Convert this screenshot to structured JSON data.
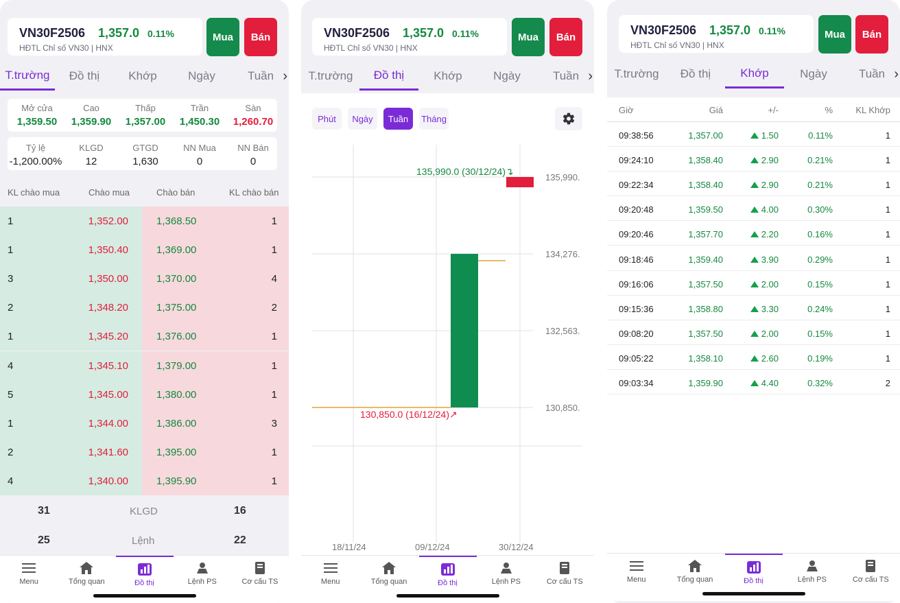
{
  "instrument": {
    "symbol": "VN30F2506",
    "price": "1,357.0",
    "change_pct": "0.11%",
    "subtitle": "HĐTL Chỉ số VN30 | HNX",
    "buy_label": "Mua",
    "sell_label": "Bán"
  },
  "tabs": [
    "T.trường",
    "Đồ thị",
    "Khớp",
    "Ngày",
    "Tuần"
  ],
  "colors": {
    "accent": "#7b2bd6",
    "up": "#14883f",
    "down": "#e31d3c"
  },
  "stats": {
    "row1": [
      {
        "label": "Mở cửa",
        "value": "1,359.50"
      },
      {
        "label": "Cao",
        "value": "1,359.90"
      },
      {
        "label": "Thấp",
        "value": "1,357.00"
      },
      {
        "label": "Trần",
        "value": "1,450.30"
      },
      {
        "label": "Sàn",
        "value": "1,260.70"
      }
    ],
    "row2": [
      {
        "label": "Tỷ lệ",
        "value": "-1,200.00%"
      },
      {
        "label": "KLGD",
        "value": "12"
      },
      {
        "label": "GTGD",
        "value": "1,630"
      },
      {
        "label": "NN Mua",
        "value": "0"
      },
      {
        "label": "NN Bán",
        "value": "0"
      }
    ]
  },
  "orderbook": {
    "headers": [
      "KL chào mua",
      "Chào mua",
      "Chào bán",
      "KL chào bán"
    ],
    "rows": [
      [
        "1",
        "1,352.00",
        "1,368.50",
        "1"
      ],
      [
        "1",
        "1,350.40",
        "1,369.00",
        "1"
      ],
      [
        "3",
        "1,350.00",
        "1,370.00",
        "4"
      ],
      [
        "2",
        "1,348.20",
        "1,375.00",
        "2"
      ],
      [
        "1",
        "1,345.20",
        "1,376.00",
        "1"
      ],
      [
        "4",
        "1,345.10",
        "1,379.00",
        "1"
      ],
      [
        "5",
        "1,345.00",
        "1,380.00",
        "1"
      ],
      [
        "1",
        "1,344.00",
        "1,386.00",
        "3"
      ],
      [
        "2",
        "1,341.60",
        "1,395.00",
        "1"
      ],
      [
        "4",
        "1,340.00",
        "1,395.90",
        "1"
      ]
    ],
    "summary": [
      {
        "left": "31",
        "label": "KLGD",
        "right": "16"
      },
      {
        "left": "25",
        "label": "Lệnh",
        "right": "22"
      }
    ]
  },
  "chart": {
    "ranges": [
      "Phút",
      "Ngày",
      "Tuần",
      "Tháng"
    ],
    "active_range": "Tuần",
    "y_labels": [
      "135,990.",
      "134,276.",
      "132,563.",
      "130,850."
    ],
    "x_labels": [
      "18/11/24",
      "09/12/24",
      "30/12/24"
    ],
    "high_annotation": "135,990.0 (30/12/24)",
    "low_annotation": "130,850.0 (16/12/24)"
  },
  "chart_data": {
    "type": "candlestick",
    "ylim": [
      130850,
      135990
    ],
    "candles": [
      {
        "x": "16/12/24",
        "open": 130850,
        "close": 134276,
        "high": 134276,
        "low": 130850,
        "direction": "up"
      },
      {
        "x": "30/12/24",
        "open": 135990,
        "close": 135800,
        "high": 135990,
        "low": 135800,
        "direction": "down"
      }
    ]
  },
  "trades": {
    "headers": [
      "Giờ",
      "Giá",
      "+/-",
      "%",
      "KL Khớp"
    ],
    "rows": [
      [
        "09:38:56",
        "1,357.00",
        "1.50",
        "0.11%",
        "1"
      ],
      [
        "09:24:10",
        "1,358.40",
        "2.90",
        "0.21%",
        "1"
      ],
      [
        "09:22:34",
        "1,358.40",
        "2.90",
        "0.21%",
        "1"
      ],
      [
        "09:20:48",
        "1,359.50",
        "4.00",
        "0.30%",
        "1"
      ],
      [
        "09:20:46",
        "1,357.70",
        "2.20",
        "0.16%",
        "1"
      ],
      [
        "09:18:46",
        "1,359.40",
        "3.90",
        "0.29%",
        "1"
      ],
      [
        "09:16:06",
        "1,357.50",
        "2.00",
        "0.15%",
        "1"
      ],
      [
        "09:15:36",
        "1,358.80",
        "3.30",
        "0.24%",
        "1"
      ],
      [
        "09:08:20",
        "1,357.50",
        "2.00",
        "0.15%",
        "1"
      ],
      [
        "09:05:22",
        "1,358.10",
        "2.60",
        "0.19%",
        "1"
      ],
      [
        "09:03:34",
        "1,359.90",
        "4.40",
        "0.32%",
        "2"
      ]
    ]
  },
  "nav": [
    {
      "label": "Menu",
      "icon": "menu-icon"
    },
    {
      "label": "Tổng quan",
      "icon": "home-icon"
    },
    {
      "label": "Đồ thị",
      "icon": "chart-icon"
    },
    {
      "label": "Lệnh PS",
      "icon": "order-icon"
    },
    {
      "label": "Cơ cấu TS",
      "icon": "book-icon"
    }
  ]
}
